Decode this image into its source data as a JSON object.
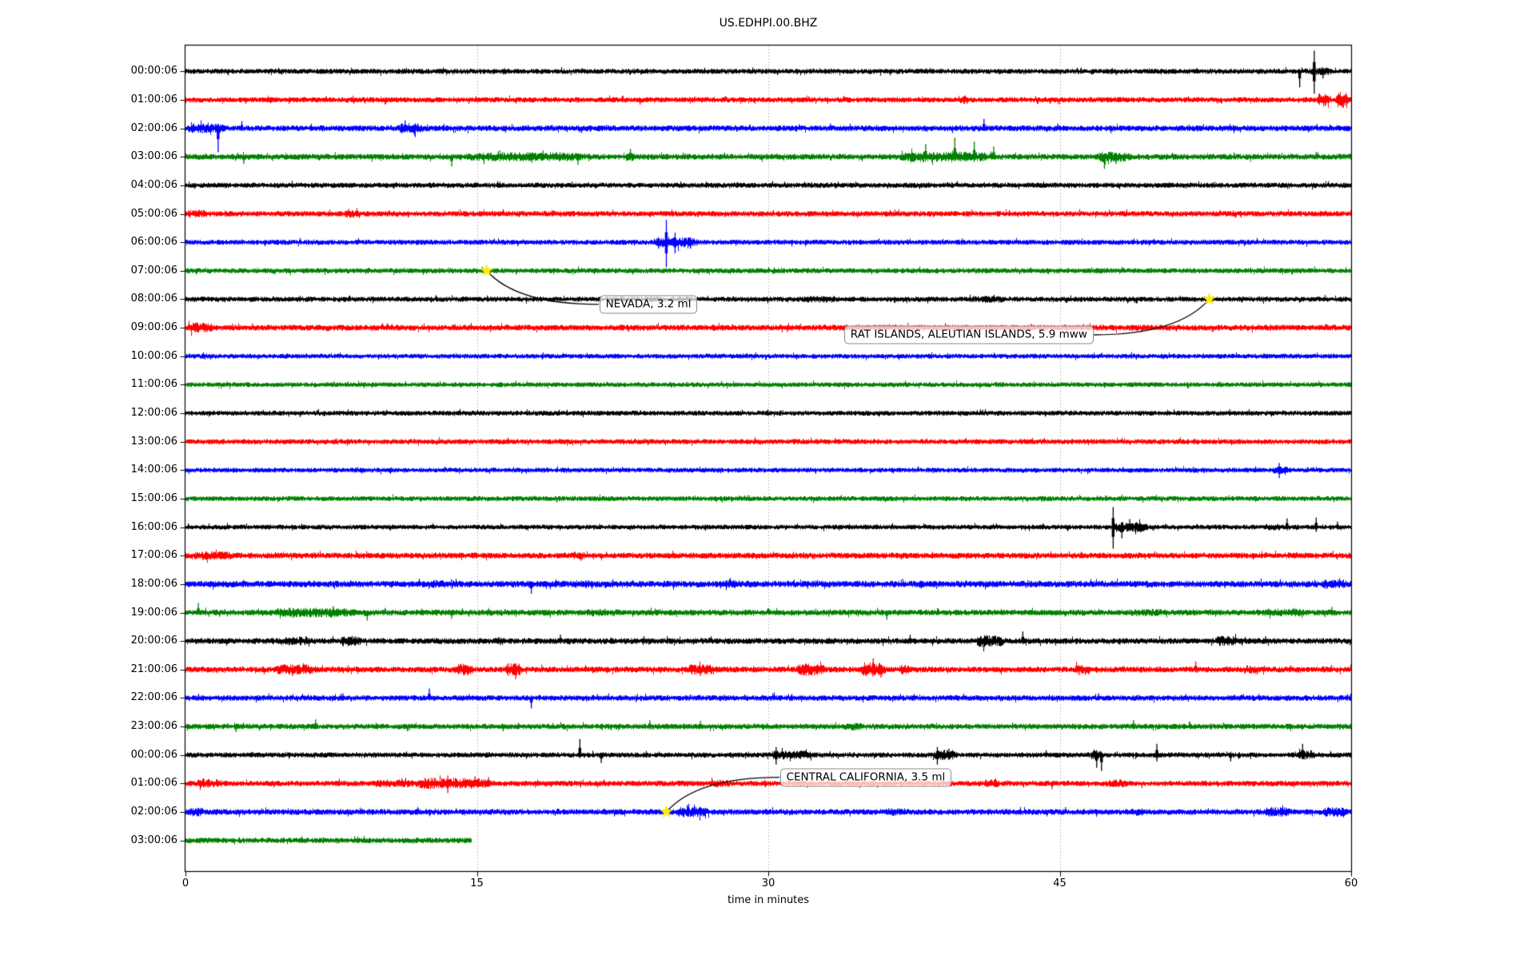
{
  "chart_data": {
    "type": "line",
    "subtype": "seismogram-helicorder-dayplot",
    "title": "US.EDHPI.00.BHZ",
    "xlabel": "time in minutes",
    "xlim": [
      0,
      60
    ],
    "x_ticks": [
      "0",
      "15",
      "30",
      "45",
      "60"
    ],
    "x_tick_values": [
      0,
      15,
      30,
      45,
      60
    ],
    "grid": "vertical-dotted",
    "grid_color": "#b0b0b0",
    "color_cycle": [
      "#000000",
      "#ff0000",
      "#0000ff",
      "#008000"
    ],
    "star_color": "#ffe90a",
    "rows": [
      {
        "label": "00:00:06",
        "color": "#000000",
        "base": 3,
        "bursts": [
          [
            57.8,
            59.2,
            4.5
          ]
        ],
        "spikes": [
          [
            57.35,
            3,
            20
          ],
          [
            58.1,
            26,
            28
          ],
          [
            58.55,
            2,
            9
          ]
        ]
      },
      {
        "label": "01:00:06",
        "color": "#ff0000",
        "base": 3.1,
        "bursts": [
          [
            39.8,
            40.4,
            5
          ],
          [
            58.2,
            58.9,
            8
          ],
          [
            59.2,
            59.9,
            9
          ]
        ],
        "spikes": [
          [
            23.4,
            2,
            6
          ],
          [
            33.9,
            5,
            2
          ]
        ]
      },
      {
        "label": "02:00:06",
        "color": "#0000ff",
        "base": 3.4,
        "bursts": [
          [
            0,
            2.3,
            5.5
          ],
          [
            10.8,
            12.3,
            6
          ]
        ],
        "spikes": [
          [
            1.68,
            3,
            30
          ],
          [
            2.9,
            9,
            3
          ],
          [
            11.3,
            10,
            4
          ],
          [
            11.8,
            4,
            9
          ],
          [
            33.2,
            6,
            2
          ],
          [
            41.1,
            12,
            3
          ],
          [
            44.9,
            6,
            2
          ]
        ]
      },
      {
        "label": "03:00:06",
        "color": "#008000",
        "base": 3.4,
        "bursts": [
          [
            13.9,
            21.5,
            5.5
          ],
          [
            22.5,
            23.3,
            5
          ],
          [
            36.4,
            42.2,
            6
          ],
          [
            46.8,
            48.9,
            6
          ]
        ],
        "spikes": [
          [
            1.05,
            4,
            2
          ],
          [
            3.0,
            2,
            9
          ],
          [
            13.7,
            3,
            12
          ],
          [
            16.1,
            7,
            3
          ],
          [
            18.4,
            8,
            4
          ],
          [
            19.1,
            6,
            3
          ],
          [
            20.2,
            3,
            10
          ],
          [
            22.9,
            10,
            3
          ],
          [
            38.1,
            16,
            4
          ],
          [
            39.6,
            24,
            5
          ],
          [
            40.6,
            19,
            4
          ],
          [
            41.6,
            13,
            3
          ],
          [
            47.3,
            4,
            15
          ],
          [
            47.9,
            3,
            9
          ],
          [
            58.2,
            6,
            2
          ]
        ]
      },
      {
        "label": "04:00:06",
        "color": "#000000",
        "base": 3
      },
      {
        "label": "05:00:06",
        "color": "#ff0000",
        "base": 3.2,
        "bursts": [
          [
            0,
            1.2,
            4.5
          ],
          [
            8.1,
            9,
            4.5
          ]
        ],
        "spikes": [
          [
            8.4,
            6,
            2
          ]
        ]
      },
      {
        "label": "06:00:06",
        "color": "#0000ff",
        "base": 3,
        "bursts": [
          [
            23.9,
            26.6,
            6
          ]
        ],
        "spikes": [
          [
            24.35,
            4,
            8
          ],
          [
            24.75,
            28,
            31
          ],
          [
            25.2,
            12,
            14
          ],
          [
            26.0,
            6,
            8
          ]
        ]
      },
      {
        "label": "07:00:06",
        "color": "#008000",
        "base": 3
      },
      {
        "label": "08:00:06",
        "color": "#000000",
        "base": 3,
        "bursts": [
          [
            31.5,
            34,
            4
          ],
          [
            40,
            42.5,
            4
          ]
        ]
      },
      {
        "label": "09:00:06",
        "color": "#ff0000",
        "base": 3.4,
        "bursts": [
          [
            0,
            1.6,
            6
          ]
        ]
      },
      {
        "label": "10:00:06",
        "color": "#0000ff",
        "base": 2.8
      },
      {
        "label": "11:00:06",
        "color": "#008000",
        "base": 2.8
      },
      {
        "label": "12:00:06",
        "color": "#000000",
        "base": 2.9
      },
      {
        "label": "13:00:06",
        "color": "#ff0000",
        "base": 3
      },
      {
        "label": "14:00:06",
        "color": "#0000ff",
        "base": 2.8,
        "bursts": [
          [
            55.9,
            56.9,
            4.5
          ]
        ],
        "spikes": [
          [
            56.3,
            9,
            10
          ]
        ]
      },
      {
        "label": "15:00:06",
        "color": "#008000",
        "base": 2.9
      },
      {
        "label": "16:00:06",
        "color": "#000000",
        "base": 2.8,
        "bursts": [
          [
            47.6,
            49.7,
            6
          ],
          [
            55.5,
            56.5,
            4
          ]
        ],
        "spikes": [
          [
            47.75,
            25,
            27
          ],
          [
            48.2,
            6,
            14
          ],
          [
            48.6,
            10,
            5
          ],
          [
            56.7,
            11,
            4
          ],
          [
            58.2,
            12,
            6
          ],
          [
            59.3,
            7,
            3
          ]
        ]
      },
      {
        "label": "17:00:06",
        "color": "#ff0000",
        "base": 3.4,
        "bursts": [
          [
            0,
            2.8,
            5
          ],
          [
            19.8,
            20.7,
            4.5
          ]
        ]
      },
      {
        "label": "18:00:06",
        "color": "#0000ff",
        "base": 3.8,
        "bursts": [
          [
            12.4,
            14.1,
            4.5
          ],
          [
            19.9,
            21.1,
            4.5
          ],
          [
            27.4,
            28.6,
            4.5
          ],
          [
            58.3,
            60,
            5.5
          ]
        ],
        "spikes": [
          [
            17.8,
            3,
            12
          ],
          [
            28.0,
            6,
            3
          ]
        ]
      },
      {
        "label": "19:00:06",
        "color": "#008000",
        "base": 3.4,
        "bursts": [
          [
            4.3,
            9.3,
            5.5
          ],
          [
            20.4,
            22.6,
            4.5
          ],
          [
            48.4,
            50.6,
            4.5
          ],
          [
            54.8,
            58.3,
            4.5
          ]
        ],
        "spikes": [
          [
            0.66,
            12,
            2
          ],
          [
            7.6,
            8,
            3
          ],
          [
            9.35,
            2,
            10
          ],
          [
            13.7,
            2,
            8
          ],
          [
            36.1,
            2,
            9
          ],
          [
            59.0,
            7,
            3
          ]
        ]
      },
      {
        "label": "20:00:06",
        "color": "#000000",
        "base": 3.4,
        "bursts": [
          [
            4.9,
            6.6,
            5
          ],
          [
            7.9,
            9.1,
            6
          ],
          [
            15.8,
            16.6,
            5
          ],
          [
            40.6,
            42.3,
            7
          ],
          [
            52.9,
            54.3,
            6
          ]
        ],
        "spikes": [
          [
            19.3,
            8,
            3
          ],
          [
            23.6,
            6,
            2
          ],
          [
            37.3,
            8,
            3
          ],
          [
            43.1,
            12,
            4
          ],
          [
            55.6,
            6,
            3
          ]
        ]
      },
      {
        "label": "21:00:06",
        "color": "#ff0000",
        "base": 3.4,
        "bursts": [
          [
            4.4,
            7.1,
            6
          ],
          [
            13.8,
            14.9,
            6.5
          ],
          [
            16.4,
            17.4,
            7.5
          ],
          [
            25.7,
            27.6,
            6
          ],
          [
            31.3,
            33.1,
            7
          ],
          [
            34.7,
            36.1,
            8.5
          ],
          [
            36.7,
            37.3,
            6
          ],
          [
            45.7,
            46.7,
            6
          ],
          [
            54.4,
            55.2,
            5
          ]
        ],
        "spikes": [
          [
            5.5,
            3,
            8
          ],
          [
            14.3,
            7,
            3
          ],
          [
            17.0,
            3,
            12
          ],
          [
            26.5,
            3,
            8
          ],
          [
            35.4,
            14,
            6
          ],
          [
            35.8,
            4,
            10
          ],
          [
            52.0,
            10,
            4
          ]
        ]
      },
      {
        "label": "22:00:06",
        "color": "#0000ff",
        "base": 3.2,
        "spikes": [
          [
            8.1,
            6,
            2
          ],
          [
            12.55,
            12,
            3
          ],
          [
            14.6,
            5,
            2
          ],
          [
            17.8,
            3,
            13
          ],
          [
            21.2,
            5,
            2
          ],
          [
            30.3,
            7,
            3
          ],
          [
            36.8,
            5,
            2
          ],
          [
            47.0,
            6,
            3
          ],
          [
            51.5,
            5,
            2
          ]
        ]
      },
      {
        "label": "23:00:06",
        "color": "#008000",
        "base": 3.2,
        "bursts": [
          [
            33.8,
            35,
            4.5
          ]
        ],
        "spikes": [
          [
            2.6,
            3,
            7
          ],
          [
            6.7,
            9,
            3
          ],
          [
            16.35,
            3,
            6
          ],
          [
            23.9,
            8,
            3
          ],
          [
            26.5,
            7,
            2
          ],
          [
            48.8,
            8,
            3
          ]
        ]
      },
      {
        "label": "00:00:06",
        "color": "#000000",
        "base": 3,
        "bursts": [
          [
            29.9,
            32.6,
            5
          ],
          [
            38.4,
            39.8,
            6
          ],
          [
            46.5,
            47.3,
            5
          ],
          [
            57.2,
            58.2,
            5.5
          ]
        ],
        "spikes": [
          [
            20.3,
            20,
            4
          ],
          [
            21.4,
            3,
            10
          ],
          [
            30.4,
            10,
            12
          ],
          [
            38.7,
            10,
            12
          ],
          [
            39.3,
            8,
            6
          ],
          [
            44.3,
            6,
            3
          ],
          [
            46.9,
            6,
            16
          ],
          [
            47.15,
            4,
            20
          ],
          [
            50.0,
            14,
            8
          ],
          [
            53.8,
            4,
            8
          ],
          [
            57.5,
            14,
            5
          ]
        ]
      },
      {
        "label": "01:00:06",
        "color": "#ff0000",
        "base": 3.2,
        "bursts": [
          [
            0.4,
            2.1,
            5
          ],
          [
            9.4,
            12.1,
            4.5
          ],
          [
            11.6,
            16.1,
            6.5
          ],
          [
            26.9,
            28.1,
            4.5
          ],
          [
            41,
            42.1,
            4.5
          ],
          [
            47.4,
            48.6,
            4.5
          ]
        ],
        "spikes": [
          [
            13.5,
            10,
            12
          ],
          [
            14.9,
            9,
            4
          ],
          [
            15.6,
            8,
            3
          ],
          [
            44.6,
            3,
            7
          ]
        ]
      },
      {
        "label": "02:00:06",
        "color": "#0000ff",
        "base": 3.4,
        "bursts": [
          [
            0,
            1.1,
            5
          ],
          [
            25.1,
            27.2,
            6
          ],
          [
            35.9,
            37.1,
            4.5
          ],
          [
            48.4,
            49.6,
            4.5
          ],
          [
            55.4,
            57.1,
            5.5
          ],
          [
            58.4,
            60,
            5.5
          ]
        ],
        "spikes": [
          [
            25.9,
            10,
            4
          ],
          [
            45.3,
            6,
            2
          ]
        ]
      },
      {
        "label": "03:00:06",
        "color": "#008000",
        "base": 3.2,
        "end": 14.72
      }
    ],
    "annotations": [
      {
        "text": "NEVADA, 3.2 ml",
        "marker": "yellow-star",
        "event_row": 7,
        "event_minute": 15.5,
        "label_minute": 21.3,
        "label_row": 8.18,
        "attach": "left"
      },
      {
        "text": "RAT ISLANDS, ALEUTIAN ISLANDS, 5.9 mww",
        "marker": "yellow-star",
        "event_row": 8,
        "event_minute": 52.7,
        "label_minute": 33.9,
        "label_row": 9.25,
        "attach": "right"
      },
      {
        "text": "CENTRAL CALIFORNIA, 3.5 ml",
        "marker": "yellow-star",
        "event_row": 26,
        "event_minute": 24.75,
        "label_minute": 30.6,
        "label_row": 24.78,
        "attach": "left"
      }
    ]
  }
}
